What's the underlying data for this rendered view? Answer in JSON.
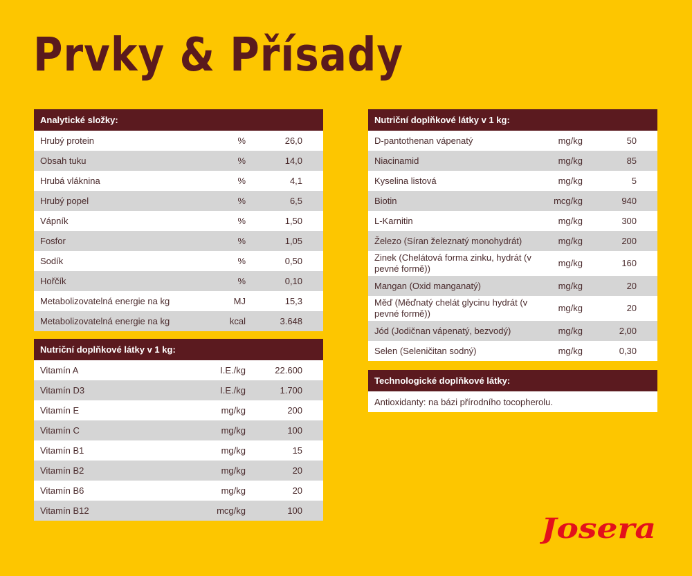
{
  "title": "Prvky & Přísady",
  "analytic": {
    "header": "Analytické složky:",
    "rows": [
      {
        "name": "Hrubý protein",
        "unit": "%",
        "value": "26,0"
      },
      {
        "name": "Obsah tuku",
        "unit": "%",
        "value": "14,0"
      },
      {
        "name": "Hrubá vláknina",
        "unit": "%",
        "value": "4,1"
      },
      {
        "name": "Hrubý popel",
        "unit": "%",
        "value": "6,5"
      },
      {
        "name": "Vápník",
        "unit": "%",
        "value": "1,50"
      },
      {
        "name": "Fosfor",
        "unit": "%",
        "value": "1,05"
      },
      {
        "name": "Sodík",
        "unit": "%",
        "value": "0,50"
      },
      {
        "name": "Hořčík",
        "unit": "%",
        "value": "0,10"
      },
      {
        "name": "Metabolizovatelná energie na kg",
        "unit": "MJ",
        "value": "15,3"
      },
      {
        "name": "Metabolizovatelná energie na kg",
        "unit": "kcal",
        "value": "3.648"
      }
    ]
  },
  "vitamins": {
    "header": "Nutriční doplňkové látky v 1 kg:",
    "rows": [
      {
        "name": "Vitamín A",
        "unit": "I.E./kg",
        "value": "22.600"
      },
      {
        "name": "Vitamín D3",
        "unit": "I.E./kg",
        "value": "1.700"
      },
      {
        "name": "Vitamín E",
        "unit": "mg/kg",
        "value": "200"
      },
      {
        "name": "Vitamín C",
        "unit": "mg/kg",
        "value": "100"
      },
      {
        "name": "Vitamín B1",
        "unit": "mg/kg",
        "value": "15"
      },
      {
        "name": "Vitamín B2",
        "unit": "mg/kg",
        "value": "20"
      },
      {
        "name": "Vitamín B6",
        "unit": "mg/kg",
        "value": "20"
      },
      {
        "name": "Vitamín B12",
        "unit": "mcg/kg",
        "value": "100"
      }
    ]
  },
  "nutrients": {
    "header": "Nutriční doplňkové látky v 1 kg:",
    "rows": [
      {
        "name": "D-pantothenan vápenatý",
        "unit": "mg/kg",
        "value": "50"
      },
      {
        "name": "Niacinamid",
        "unit": "mg/kg",
        "value": "85"
      },
      {
        "name": "Kyselina listová",
        "unit": "mg/kg",
        "value": "5"
      },
      {
        "name": "Biotin",
        "unit": "mcg/kg",
        "value": "940"
      },
      {
        "name": "L-Karnitin",
        "unit": "mg/kg",
        "value": "300"
      },
      {
        "name": "Železo (Síran železnatý monohydrát)",
        "unit": "mg/kg",
        "value": "200"
      },
      {
        "name": "Zinek (Chelátová forma zinku, hydrát (v pevné formě))",
        "unit": "mg/kg",
        "value": "160"
      },
      {
        "name": "Mangan (Oxid manganatý)",
        "unit": "mg/kg",
        "value": "20"
      },
      {
        "name": "Měď (Měďnatý chelát glycinu hydrát (v pevné formě))",
        "unit": "mg/kg",
        "value": "20"
      },
      {
        "name": "Jód (Jodičnan vápenatý, bezvodý)",
        "unit": "mg/kg",
        "value": "2,00"
      },
      {
        "name": "Selen (Seleničitan sodný)",
        "unit": "mg/kg",
        "value": "0,30"
      }
    ]
  },
  "technological": {
    "header": "Technologické doplňkové látky:",
    "text": "Antioxidanty: na bázi přírodního tocopherolu."
  },
  "logo": {
    "text": "Josera",
    "color": "#e3111b"
  },
  "colors": {
    "background": "#fdc600",
    "header": "#5b1a1f",
    "title": "#5a1a1d",
    "row_alt": "#d5d5d5"
  }
}
